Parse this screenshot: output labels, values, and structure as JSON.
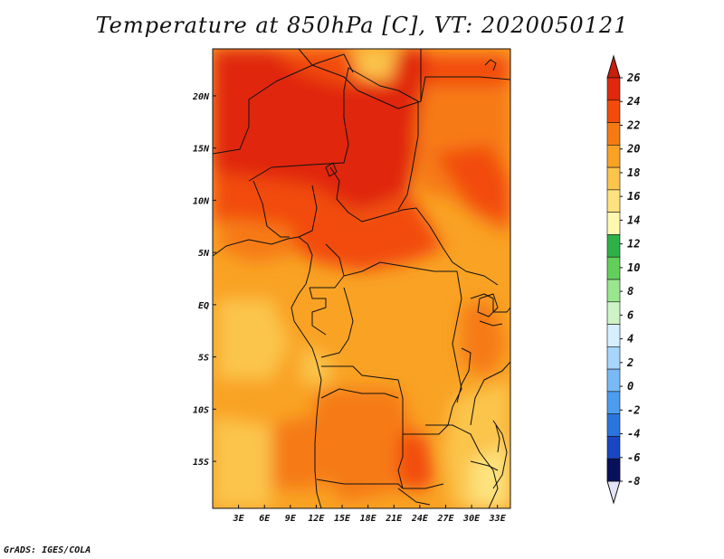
{
  "title": "Temperature at 850hPa [C], VT: 2020050121",
  "credit": "GrADS: IGES/COLA",
  "map": {
    "lon_range": [
      0,
      34.5
    ],
    "lat_range": [
      -19.5,
      24.5
    ],
    "lon_ticks": [
      {
        "value": 3,
        "label": "3E"
      },
      {
        "value": 6,
        "label": "6E"
      },
      {
        "value": 9,
        "label": "9E"
      },
      {
        "value": 12,
        "label": "12E"
      },
      {
        "value": 15,
        "label": "15E"
      },
      {
        "value": 18,
        "label": "18E"
      },
      {
        "value": 21,
        "label": "21E"
      },
      {
        "value": 24,
        "label": "24E"
      },
      {
        "value": 27,
        "label": "27E"
      },
      {
        "value": 30,
        "label": "30E"
      },
      {
        "value": 33,
        "label": "33E"
      }
    ],
    "lat_ticks": [
      {
        "value": 20,
        "label": "20N"
      },
      {
        "value": 15,
        "label": "15N"
      },
      {
        "value": 10,
        "label": "10N"
      },
      {
        "value": 5,
        "label": "5N"
      },
      {
        "value": 0,
        "label": "EQ"
      },
      {
        "value": -5,
        "label": "5S"
      },
      {
        "value": -10,
        "label": "10S"
      },
      {
        "value": -15,
        "label": "15S"
      }
    ]
  },
  "colorbar": {
    "levels": [
      "26",
      "24",
      "22",
      "20",
      "18",
      "16",
      "14",
      "12",
      "10",
      "8",
      "6",
      "4",
      "2",
      "0",
      "-2",
      "-4",
      "-6",
      "-8"
    ],
    "colors": [
      "#e0280f",
      "#f24b0a",
      "#f67a13",
      "#f9a224",
      "#fbc44c",
      "#fde27d",
      "#fef8b0",
      "#2fb14a",
      "#63cf5b",
      "#9ae68f",
      "#cdf3c7",
      "#d6efff",
      "#a7d5fb",
      "#79baf6",
      "#4c9cf0",
      "#2a74e0",
      "#1946c2",
      "#0c2290",
      "#08105c"
    ],
    "top_color": "#c81e0a",
    "bottom_color": "#e4e4f8"
  },
  "chart_data": {
    "type": "heatmap",
    "variable": "Temperature at 850hPa",
    "units": "C",
    "valid_time": "2020050121",
    "region": {
      "lon": [
        0,
        34.5
      ],
      "lat": [
        -19.5,
        24.5
      ]
    },
    "zones": [
      {
        "lon": [
          0,
          34.5
        ],
        "lat": [
          -19.5,
          24.5
        ],
        "value": 19
      },
      {
        "lon": [
          0,
          3
        ],
        "lat": [
          5,
          24.5
        ],
        "value": 25
      },
      {
        "lon": [
          3,
          24
        ],
        "lat": [
          11,
          24.5
        ],
        "value": 25
      },
      {
        "lon": [
          24,
          34.5
        ],
        "lat": [
          9,
          24.5
        ],
        "value": 23
      },
      {
        "lon": [
          5,
          24
        ],
        "lat": [
          7,
          11
        ],
        "value": 23
      },
      {
        "lon": [
          11,
          22
        ],
        "lat": [
          9,
          12
        ],
        "value": 25
      },
      {
        "lon": [
          14,
          26
        ],
        "lat": [
          3,
          7
        ],
        "value": 23
      },
      {
        "lon": [
          0,
          12
        ],
        "lat": [
          3,
          7
        ],
        "value": 21
      },
      {
        "lon": [
          26,
          34.5
        ],
        "lat": [
          3,
          9
        ],
        "value": 21
      },
      {
        "lon": [
          14,
          26
        ],
        "lat": [
          -17,
          -8
        ],
        "value": 21
      },
      {
        "lon": [
          9,
          14
        ],
        "lat": [
          -16,
          -5
        ],
        "value": 20
      },
      {
        "lon": [
          22,
          27
        ],
        "lat": [
          -19.5,
          -14
        ],
        "value": 22
      },
      {
        "lon": [
          28,
          34.5
        ],
        "lat": [
          -19.5,
          -12
        ],
        "value": 17
      },
      {
        "lon": [
          3,
          8
        ],
        "lat": [
          -5,
          0
        ],
        "value": 17
      },
      {
        "lon": [
          22,
          26
        ],
        "lat": [
          22,
          24.5
        ],
        "value": 19
      }
    ]
  }
}
